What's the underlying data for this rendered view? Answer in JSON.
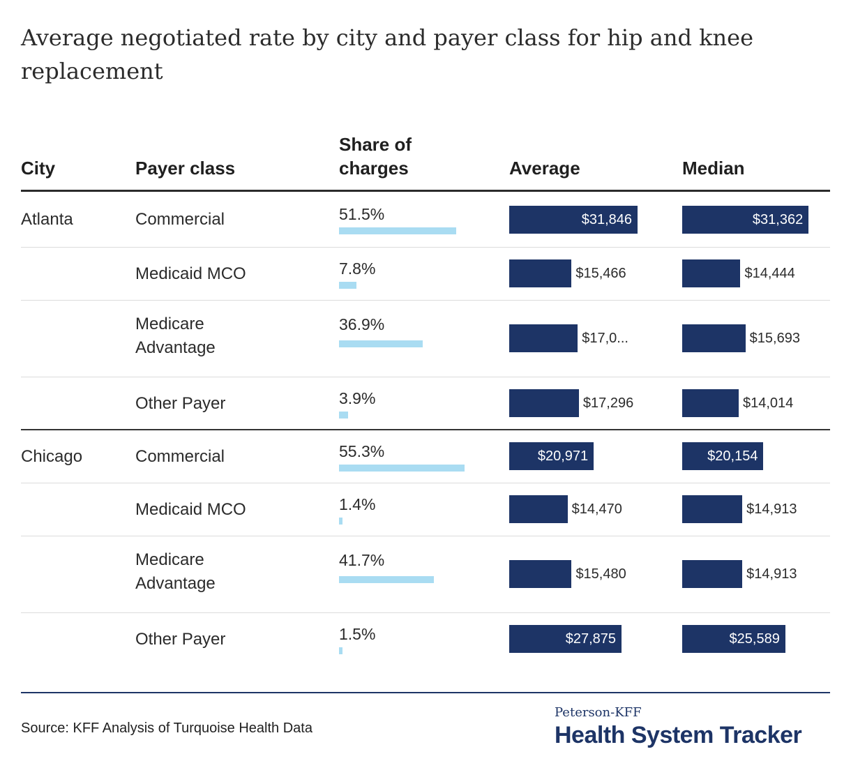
{
  "title": "Average negotiated rate by city and payer class for hip and knee replacement",
  "headers": {
    "city": "City",
    "payer": "Payer class",
    "share": "Share of charges",
    "average": "Average",
    "median": "Median"
  },
  "source": "Source: KFF Analysis of Turquoise Health Data",
  "brand": {
    "top": "Peterson-KFF",
    "main": "Health System Tracker"
  },
  "colors": {
    "share_bar": "#a9dcf2",
    "money_bar": "#1d3466",
    "text": "#2b2b2b"
  },
  "chart_data": {
    "type": "table",
    "title": "Average negotiated rate by city and payer class for hip and knee replacement",
    "columns": [
      "City",
      "Payer class",
      "Share of charges",
      "Average",
      "Median"
    ],
    "rows": [
      {
        "city": "Atlanta",
        "payer": "Commercial",
        "share": 51.5,
        "share_label": "51.5%",
        "average": 31846,
        "average_label": "$31,846",
        "median": 31362,
        "median_label": "$31,362"
      },
      {
        "city": "",
        "payer": "Medicaid MCO",
        "share": 7.8,
        "share_label": "7.8%",
        "average": 15466,
        "average_label": "$15,466",
        "median": 14444,
        "median_label": "$14,444"
      },
      {
        "city": "",
        "payer": "Medicare Advantage",
        "share": 36.9,
        "share_label": "36.9%",
        "average": 17000,
        "average_label": "$17,0...",
        "median": 15693,
        "median_label": "$15,693"
      },
      {
        "city": "",
        "payer": "Other Payer",
        "share": 3.9,
        "share_label": "3.9%",
        "average": 17296,
        "average_label": "$17,296",
        "median": 14014,
        "median_label": "$14,014"
      },
      {
        "city": "Chicago",
        "payer": "Commercial",
        "share": 55.3,
        "share_label": "55.3%",
        "average": 20971,
        "average_label": "$20,971",
        "median": 20154,
        "median_label": "$20,154"
      },
      {
        "city": "",
        "payer": "Medicaid MCO",
        "share": 1.4,
        "share_label": "1.4%",
        "average": 14470,
        "average_label": "$14,470",
        "median": 14913,
        "median_label": "$14,913"
      },
      {
        "city": "",
        "payer": "Medicare Advantage",
        "share": 41.7,
        "share_label": "41.7%",
        "average": 15480,
        "average_label": "$15,480",
        "median": 14913,
        "median_label": "$14,913"
      },
      {
        "city": "",
        "payer": "Other Payer",
        "share": 1.5,
        "share_label": "1.5%",
        "average": 27875,
        "average_label": "$27,875",
        "median": 25589,
        "median_label": "$25,589"
      }
    ]
  }
}
